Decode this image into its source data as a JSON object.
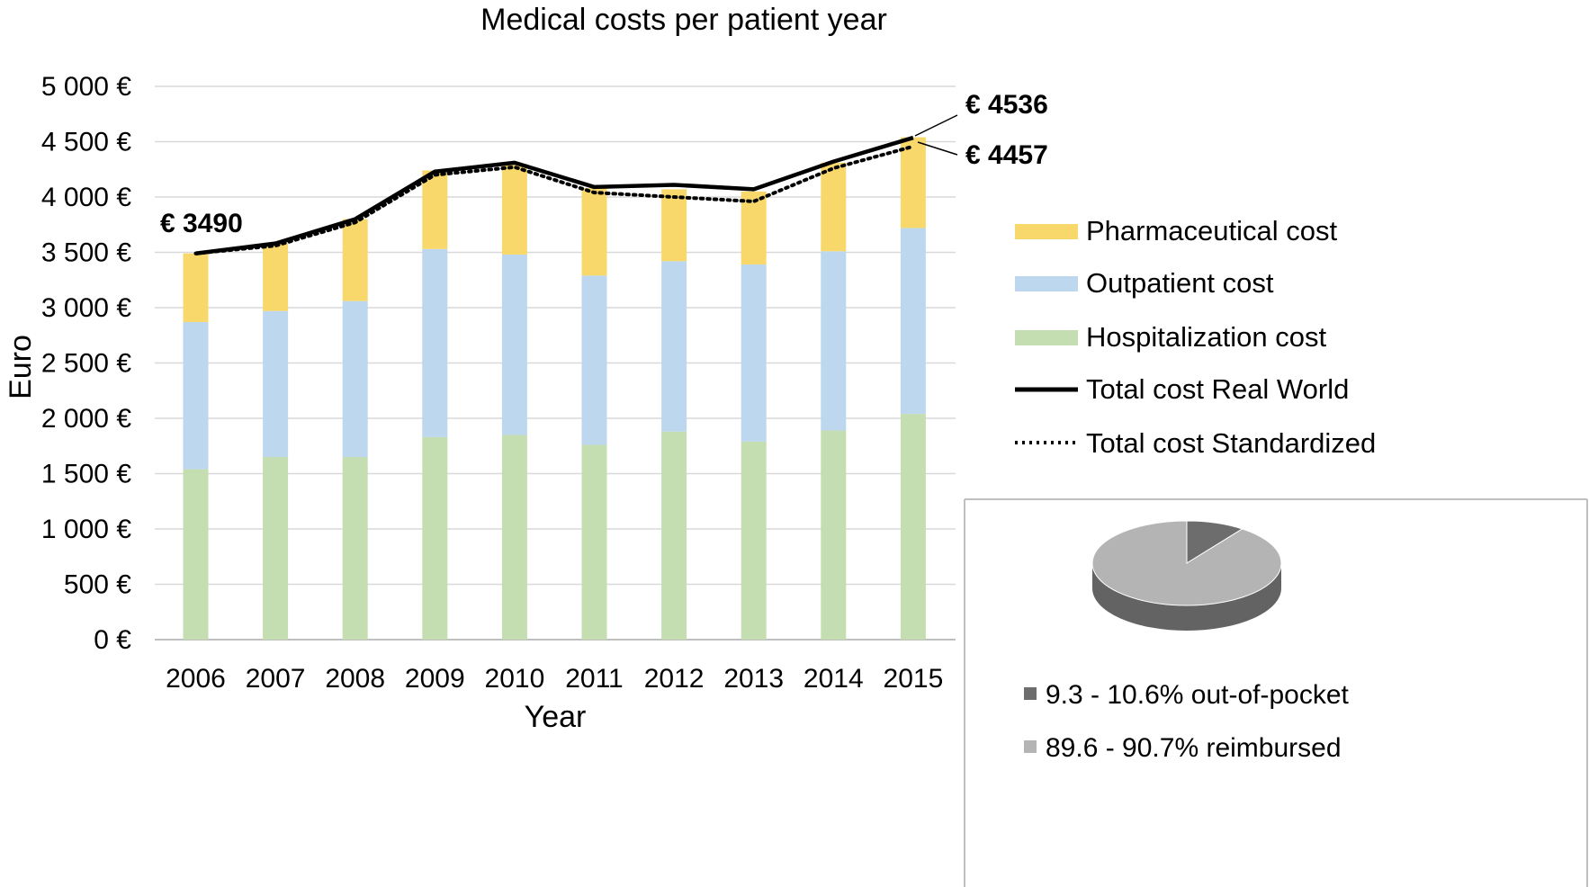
{
  "chart_data": [
    {
      "type": "bar",
      "stacked": true,
      "title": "Medical costs per patient year",
      "xlabel": "Year",
      "ylabel": "Euro",
      "ylim": [
        0,
        5000
      ],
      "y_tick_values": [
        0,
        500,
        1000,
        1500,
        2000,
        2500,
        3000,
        3500,
        4000,
        4500,
        5000
      ],
      "y_tick_labels": [
        "0 €",
        "500 €",
        "1 000 €",
        "1 500 €",
        "2 000 €",
        "2 500 €",
        "3 000 €",
        "3 500 €",
        "4 000 €",
        "4 500 €",
        "5 000 €"
      ],
      "grid": true,
      "categories": [
        "2006",
        "2007",
        "2008",
        "2009",
        "2010",
        "2011",
        "2012",
        "2013",
        "2014",
        "2015"
      ],
      "series": [
        {
          "name": "Hospitalization cost",
          "color": "#c5deb1",
          "values": [
            1540,
            1650,
            1650,
            1830,
            1850,
            1760,
            1880,
            1790,
            1890,
            2040
          ]
        },
        {
          "name": "Outpatient cost",
          "color": "#bdd7ee",
          "values": [
            1330,
            1320,
            1410,
            1700,
            1630,
            1530,
            1540,
            1600,
            1620,
            1680
          ]
        },
        {
          "name": "Pharmaceutical cost",
          "color": "#f9d86b",
          "values": [
            620,
            610,
            740,
            710,
            820,
            790,
            650,
            660,
            800,
            820
          ]
        }
      ],
      "lines": [
        {
          "name": "Total cost Real World",
          "style": "solid",
          "color": "#000000",
          "values": [
            3490,
            3580,
            3800,
            4230,
            4310,
            4090,
            4110,
            4070,
            4320,
            4536
          ]
        },
        {
          "name": "Total cost Standardized",
          "style": "dotted",
          "color": "#000000",
          "values": [
            3490,
            3560,
            3770,
            4200,
            4270,
            4040,
            4000,
            3960,
            4260,
            4457
          ]
        }
      ],
      "legend": {
        "position": "right",
        "entries": [
          "Pharmaceutical cost",
          "Outpatient cost",
          "Hospitalization cost",
          "Total cost Real World",
          "Total cost Standardized"
        ]
      },
      "annotations": {
        "first": "€ 3490",
        "last_real": "€ 4536",
        "last_standardized": "€ 4457"
      }
    },
    {
      "type": "pie",
      "style": "3d",
      "slices": [
        {
          "label": "9.3 - 10.6% out-of-pocket",
          "value": 10,
          "color": "#6d6d6d"
        },
        {
          "label": "89.6 - 90.7% reimbursed",
          "value": 90,
          "color": "#b4b4b4"
        }
      ],
      "legend": {
        "position": "bottom"
      }
    }
  ]
}
